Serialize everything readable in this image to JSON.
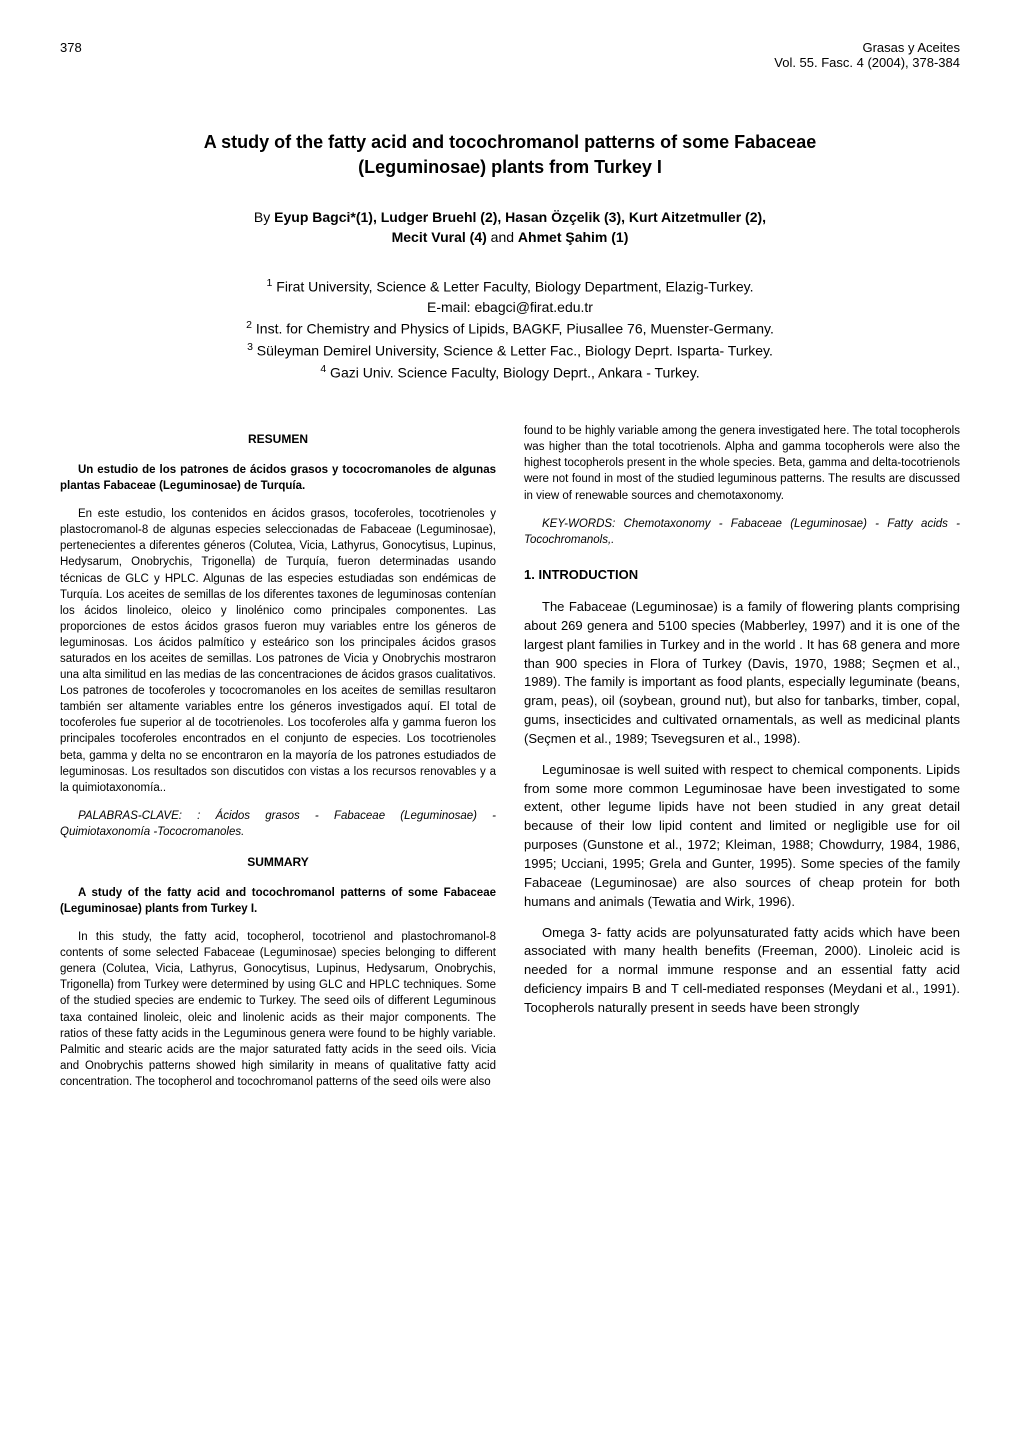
{
  "header": {
    "page_number": "378",
    "journal": "Grasas y Aceites",
    "citation": "Vol. 55. Fasc. 4 (2004), 378-384"
  },
  "title": {
    "line1": "A study of the fatty acid and tocochromanol patterns of some Fabaceae",
    "line2": "(Leguminosae) plants from Turkey I"
  },
  "authors": {
    "prefix": "By ",
    "list": "Eyup Bagci*(1), Ludger Bruehl (2), Hasan Özçelik (3), Kurt Aitzetmuller (2),",
    "list2": "Mecit Vural (4)",
    "and": " and ",
    "last": "Ahmet Şahim (1)"
  },
  "affiliations": {
    "a1_sup": "1",
    "a1": " Firat University, Science & Letter Faculty, Biology Department, Elazig-Turkey.",
    "email": "E-mail: ebagci@firat.edu.tr",
    "a2_sup": "2",
    "a2": " Inst. for Chemistry and Physics of Lipids, BAGKF, Piusallee 76, Muenster-Germany.",
    "a3_sup": "3",
    "a3": " Süleyman Demirel University, Science & Letter Fac., Biology Deprt. Isparta- Turkey.",
    "a4_sup": "4",
    "a4": " Gazi Univ. Science Faculty, Biology Deprt., Ankara - Turkey."
  },
  "left": {
    "resumen_head": "RESUMEN",
    "resumen_title": "Un estudio de los patrones de ácidos grasos y tococromanoles de algunas plantas Fabaceae (Leguminosae) de Turquía.",
    "resumen_body": "En este estudio, los contenidos en ácidos grasos, tocoferoles, tocotrienoles y plastocromanol-8 de algunas especies seleccionadas de Fabaceae (Leguminosae), pertenecientes a diferentes géneros (Colutea, Vicia, Lathyrus, Gonocytisus, Lupinus, Hedysarum, Onobrychis, Trigonella) de Turquía, fueron determinadas usando técnicas de GLC y HPLC. Algunas de las especies estudiadas son endémicas de Turquía. Los aceites de semillas de los diferentes taxones de leguminosas contenían los ácidos linoleico, oleico y linolénico como principales componentes. Las proporciones de estos ácidos grasos fueron muy variables entre los géneros de leguminosas. Los ácidos palmítico y esteárico son los principales ácidos grasos saturados en los aceites de semillas. Los patrones de Vicia y Onobrychis mostraron una alta similitud en las medias de las concentraciones de ácidos grasos cualitativos. Los patrones de tocoferoles y tococromanoles en los aceites de semillas resultaron también ser altamente variables entre los géneros investigados aquí. El total de tocoferoles fue superior al de tocotrienoles. Los tocoferoles alfa y gamma fueron los principales tocoferoles encontrados en el conjunto de especies. Los tocotrienoles beta, gamma y delta no se encontraron en la mayoría de los patrones estudiados de leguminosas. Los resultados son discutidos con vistas a los recursos renovables y a la quimiotaxonomía..",
    "resumen_keywords": "PALABRAS-CLAVE: : Ácidos grasos - Fabaceae (Leguminosae) - Quimiotaxonomía -Tococromanoles.",
    "summary_head": "SUMMARY",
    "summary_title": "A study of the fatty acid and tocochromanol patterns of some Fabaceae (Leguminosae) plants from Turkey I.",
    "summary_body": "In this study, the fatty acid, tocopherol, tocotrienol and plastochromanol-8 contents of some selected Fabaceae (Leguminosae) species belonging to different genera (Colutea, Vicia, Lathyrus, Gonocytisus, Lupinus, Hedysarum, Onobrychis, Trigonella) from Turkey were determined by using GLC and HPLC techniques. Some of the studied species are endemic to Turkey. The seed oils of different Leguminous taxa contained linoleic, oleic and linolenic acids as their major components. The ratios of these fatty acids in the Leguminous genera were found to be highly variable. Palmitic and stearic acids are the major saturated fatty acids in the seed oils. Vicia and Onobrychis patterns showed high similarity in means of qualitative fatty acid concentration. The tocopherol and tocochromanol patterns of the seed oils were also"
  },
  "right": {
    "summary_cont": "found to be highly variable among the genera investigated here. The total tocopherols was higher than the total tocotrienols. Alpha and gamma tocopherols were also the highest tocopherols present in the whole species. Beta, gamma and delta-tocotrienols were not found in most of the studied leguminous patterns. The results are discussed in view of renewable sources and chemotaxonomy.",
    "summary_keywords": "KEY-WORDS: Chemotaxonomy - Fabaceae (Leguminosae) - Fatty acids - Tocochromanols,.",
    "intro_head": "1.   INTRODUCTION",
    "intro_p1": "The Fabaceae (Leguminosae) is a family of flowering plants comprising about 269 genera and 5100 species (Mabberley, 1997) and it is one of the largest plant families in Turkey and in the world . It has 68 genera and more than 900 species in Flora of Turkey (Davis, 1970, 1988; Seçmen et al., 1989). The family is important as food plants, especially leguminate (beans, gram, peas), oil (soybean, ground nut), but also for tanbarks, timber, copal, gums, insecticides and cultivated ornamentals, as well as medicinal plants (Seçmen et al., 1989; Tsevegsuren et al., 1998).",
    "intro_p2": "Leguminosae is well suited with respect to chemical components. Lipids from some more common Leguminosae have been investigated to some extent, other legume lipids have not been studied in any great detail because of their low lipid content and limited or negligible use for oil purposes (Gunstone et al., 1972; Kleiman, 1988; Chowdurry, 1984, 1986, 1995; Ucciani, 1995; Grela and Gunter, 1995). Some species of the family Fabaceae (Leguminosae) are also sources of cheap protein for both humans and animals (Tewatia and Wirk, 1996).",
    "intro_p3": "Omega 3- fatty acids are polyunsaturated fatty acids which have been associated with many health benefits (Freeman, 2000). Linoleic acid is needed for a normal immune response and an essential fatty acid deficiency impairs B and T cell-mediated responses (Meydani et al., 1991). Tocopherols naturally present in seeds have been strongly"
  }
}
